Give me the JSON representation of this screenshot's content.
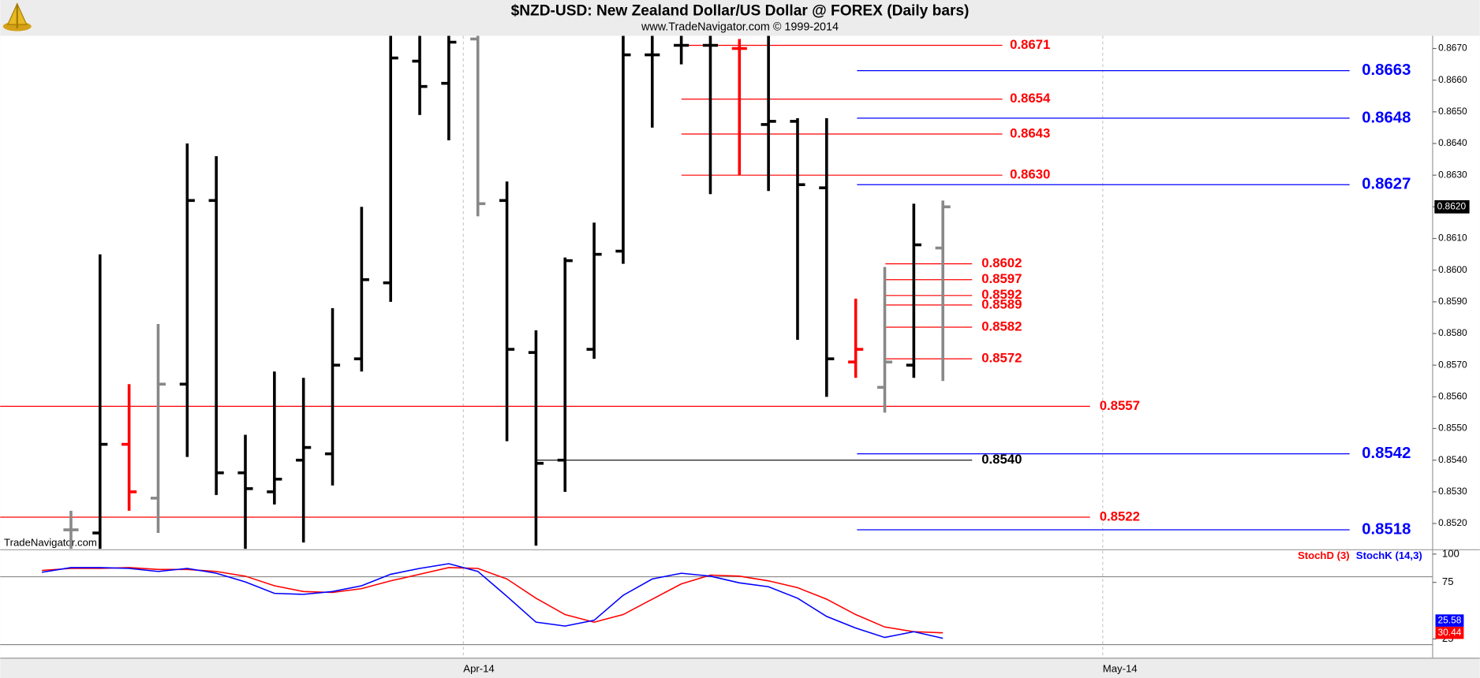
{
  "chart_data": [
    {
      "type": "ohlc",
      "title": "$NZD-USD:  New Zealand Dollar/US Dollar @ FOREX  (Daily bars)",
      "subtitle": "www.TradeNavigator.com © 1999-2014",
      "watermark": "TradeNavigator.com",
      "categories": [
        null,
        null,
        null,
        null,
        null,
        null,
        null,
        null,
        null,
        null,
        null,
        null,
        null,
        null,
        null,
        "Apr-14",
        null,
        null,
        null,
        null,
        null,
        null,
        null,
        null,
        null,
        null,
        null,
        null,
        null,
        null,
        null,
        null,
        null,
        null,
        null,
        null,
        null,
        "May-14",
        null,
        null,
        null,
        null,
        null,
        null,
        null,
        null,
        null,
        null
      ],
      "open": [
        null,
        0.8518,
        0.8517,
        0.8545,
        0.8528,
        0.8564,
        0.8622,
        0.8536,
        0.853,
        0.854,
        0.8542,
        0.8572,
        0.8596,
        0.8666,
        0.8659,
        0.8673,
        0.8622,
        0.8574,
        0.854,
        0.8575,
        0.8606,
        0.8668,
        0.8671,
        0.8671,
        0.867,
        0.8646,
        0.8647,
        0.8626,
        0.8571,
        0.8563,
        0.857,
        0.8607,
        null,
        null,
        null,
        null,
        null,
        null,
        null,
        null,
        null,
        null,
        null,
        null,
        null,
        null,
        null,
        null
      ],
      "high": [
        null,
        0.8524,
        0.8605,
        0.8564,
        0.8583,
        0.864,
        0.8636,
        0.8548,
        0.8568,
        0.8566,
        0.8588,
        0.862,
        0.8676,
        0.8676,
        0.8676,
        0.8676,
        0.8628,
        0.8581,
        0.8604,
        0.8615,
        0.8676,
        0.8676,
        0.8676,
        0.8676,
        0.8673,
        0.8676,
        0.8648,
        0.8648,
        0.8591,
        0.8601,
        0.8621,
        0.8622,
        null,
        null,
        null,
        null,
        null,
        null,
        null,
        null,
        null,
        null,
        null,
        null,
        null,
        null,
        null,
        null
      ],
      "low": [
        null,
        0.851,
        0.851,
        0.8524,
        0.8517,
        0.8541,
        0.8529,
        0.851,
        0.8526,
        0.8514,
        0.8532,
        0.8568,
        0.859,
        0.8649,
        0.8641,
        0.8617,
        0.8546,
        0.8513,
        0.853,
        0.8572,
        0.8602,
        0.8645,
        0.8665,
        0.8624,
        0.863,
        0.8625,
        0.8578,
        0.856,
        0.8566,
        0.8555,
        0.8566,
        0.8565,
        null,
        null,
        null,
        null,
        null,
        null,
        null,
        null,
        null,
        null,
        null,
        null,
        null,
        null,
        null,
        null
      ],
      "close": [
        null,
        0.8518,
        0.8545,
        0.853,
        0.8564,
        0.8622,
        0.8536,
        0.8531,
        0.8534,
        0.8544,
        0.857,
        0.8597,
        0.8667,
        0.8658,
        0.8672,
        0.8621,
        0.8575,
        0.8539,
        0.8603,
        0.8605,
        0.8668,
        0.8668,
        0.8671,
        0.8671,
        0.867,
        0.8647,
        0.8627,
        0.8572,
        0.8575,
        0.8571,
        0.8608,
        0.862,
        null,
        null,
        null,
        null,
        null,
        null,
        null,
        null,
        null,
        null,
        null,
        null,
        null,
        null,
        null,
        null
      ],
      "bar_colors": [
        null,
        "#888888",
        "#000000",
        "#ff0000",
        "#888888",
        "#000000",
        "#000000",
        "#000000",
        "#000000",
        "#000000",
        "#000000",
        "#000000",
        "#000000",
        "#000000",
        "#000000",
        "#888888",
        "#000000",
        "#000000",
        "#000000",
        "#000000",
        "#000000",
        "#000000",
        "#000000",
        "#000000",
        "#ff0000",
        "#000000",
        "#000000",
        "#000000",
        "#ff0000",
        "#888888",
        "#000000",
        "#888888",
        null,
        null,
        null,
        null,
        null,
        null,
        null,
        null,
        null,
        null,
        null,
        null,
        null,
        null,
        null,
        null
      ],
      "ylim": [
        0.8512,
        0.8674
      ],
      "yticks": [
        {
          "value": 0.852,
          "label": "0.8520"
        },
        {
          "value": 0.853,
          "label": "0.8530"
        },
        {
          "value": 0.854,
          "label": "0.8540"
        },
        {
          "value": 0.855,
          "label": "0.8550"
        },
        {
          "value": 0.856,
          "label": "0.8560"
        },
        {
          "value": 0.857,
          "label": "0.8570"
        },
        {
          "value": 0.858,
          "label": "0.8580"
        },
        {
          "value": 0.859,
          "label": "0.8590"
        },
        {
          "value": 0.86,
          "label": "0.8600"
        },
        {
          "value": 0.861,
          "label": "0.8610"
        },
        {
          "value": 0.862,
          "label": "0.8620"
        },
        {
          "value": 0.863,
          "label": "0.8630"
        },
        {
          "value": 0.864,
          "label": "0.8640"
        },
        {
          "value": 0.865,
          "label": "0.8650"
        },
        {
          "value": 0.866,
          "label": "0.8660"
        },
        {
          "value": 0.867,
          "label": "0.8670"
        }
      ],
      "last_price": {
        "value": 0.862,
        "label": "0.8620"
      },
      "levels": [
        {
          "color": "#ff0000",
          "items": [
            {
              "value": 0.8671,
              "label": "0.8671"
            },
            {
              "value": 0.8654,
              "label": "0.8654"
            },
            {
              "value": 0.8643,
              "label": "0.8643"
            },
            {
              "value": 0.863,
              "label": "0.8630"
            }
          ]
        },
        {
          "color": "#ff0000",
          "items": [
            {
              "value": 0.8602,
              "label": "0.8602"
            },
            {
              "value": 0.8597,
              "label": "0.8597"
            },
            {
              "value": 0.8592,
              "label": "0.8592"
            },
            {
              "value": 0.8589,
              "label": "0.8589"
            },
            {
              "value": 0.8582,
              "label": "0.8582"
            },
            {
              "value": 0.8572,
              "label": "0.8572"
            }
          ]
        },
        {
          "color": "#ff0000",
          "items": [
            {
              "value": 0.8557,
              "label": "0.8557"
            },
            {
              "value": 0.8522,
              "label": "0.8522"
            }
          ]
        },
        {
          "color": "#000000",
          "items": [
            {
              "value": 0.854,
              "label": "0.8540"
            }
          ]
        },
        {
          "color": "#0000ff",
          "items": [
            {
              "value": 0.8663,
              "label": "0.8663"
            },
            {
              "value": 0.8648,
              "label": "0.8648"
            },
            {
              "value": 0.8627,
              "label": "0.8627"
            },
            {
              "value": 0.8542,
              "label": "0.8542"
            },
            {
              "value": 0.8518,
              "label": "0.8518"
            }
          ]
        }
      ]
    },
    {
      "type": "line",
      "series": [
        {
          "name": "StochD (3)",
          "color": "#ff0000",
          "values": [
            85.6,
            87.3,
            87.3,
            88.1,
            86.4,
            86.4,
            84.7,
            80.5,
            72.0,
            66.9,
            66.1,
            69.5,
            76.3,
            82.2,
            88.1,
            87.3,
            78.0,
            61.0,
            46.6,
            39.8,
            46.6,
            60.2,
            73.7,
            81.4,
            80.5,
            76.3,
            70.3,
            60.2,
            46.6,
            35.6,
            31.4,
            30.44,
            null,
            null,
            null,
            null,
            null,
            null,
            null,
            null,
            null,
            null,
            null,
            null,
            null,
            null,
            null,
            null
          ]
        },
        {
          "name": "StochK (14,3)",
          "color": "#0000ff",
          "values": [
            83.9,
            88.1,
            88.1,
            87.3,
            84.7,
            87.3,
            83.1,
            75.4,
            65.3,
            64.4,
            66.9,
            72.0,
            82.2,
            87.3,
            91.5,
            84.7,
            62.7,
            39.8,
            36.4,
            41.5,
            63.6,
            78.0,
            83.1,
            80.5,
            74.6,
            71.2,
            61.0,
            44.9,
            34.7,
            26.3,
            31.4,
            25.58,
            null,
            null,
            null,
            null,
            null,
            null,
            null,
            null,
            null,
            null,
            null,
            null,
            null,
            null,
            null,
            null
          ]
        }
      ],
      "ylim": [
        8,
        103
      ],
      "yticks": [
        25,
        75,
        100
      ],
      "levels": [
        20,
        80
      ]
    }
  ]
}
